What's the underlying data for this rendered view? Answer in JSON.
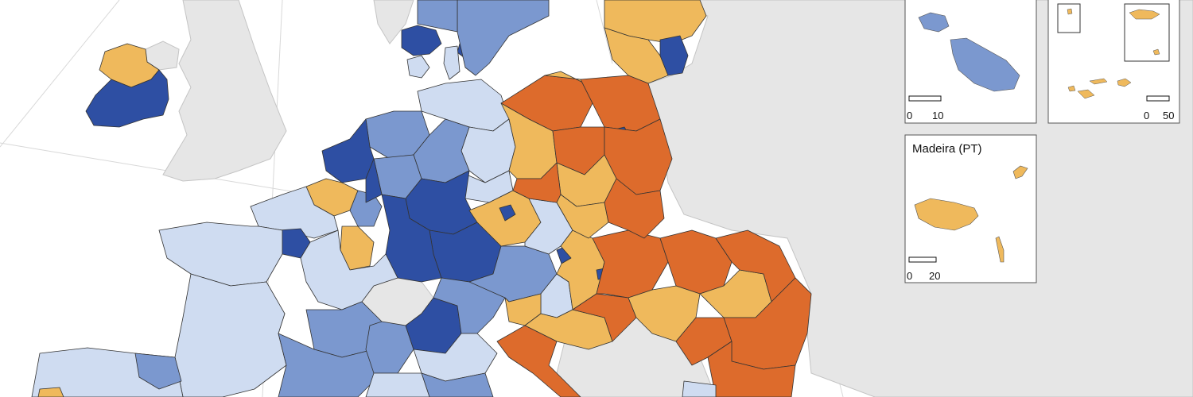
{
  "colors": {
    "background": "#ffffff",
    "non_eu_land": "#e6e6e6",
    "border_line": "#333333",
    "graticule": "#d8d8d8",
    "class_dark_blue": "#2e4fa3",
    "class_medium_blue": "#7b98cf",
    "class_light_blue": "#cfdcf1",
    "class_light_orange": "#efb95c",
    "class_dark_orange": "#dd6b2c"
  },
  "insets": [
    {
      "name": "",
      "scale_labels": [
        "0",
        "10"
      ]
    },
    {
      "name": "",
      "scale_labels": [
        "0",
        "50"
      ]
    },
    {
      "name": "Madeira (PT)",
      "scale_labels": [
        "0",
        "20"
      ]
    }
  ]
}
